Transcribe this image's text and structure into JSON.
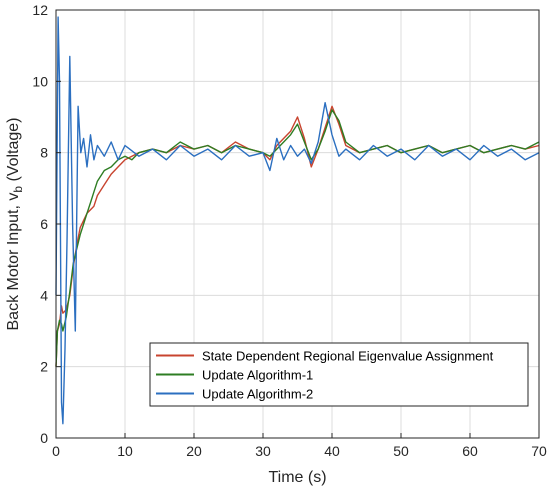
{
  "chart_data": {
    "type": "line",
    "title": "",
    "xlabel": "Time (s)",
    "ylabel_main": "Back Motor Input, v",
    "ylabel_sub": "b",
    "ylabel_unit": " (Voltage)",
    "xlim": [
      0,
      70
    ],
    "ylim": [
      0,
      12
    ],
    "xticks": [
      0,
      10,
      20,
      30,
      40,
      50,
      60,
      70
    ],
    "yticks": [
      0,
      2,
      4,
      6,
      8,
      10,
      12
    ],
    "grid": true,
    "legend_position": "bottom-right",
    "series": [
      {
        "name": "State Dependent Regional Eigenvalue Assignment",
        "color": "#c8442f",
        "x": [
          0,
          0.2,
          0.5,
          0.8,
          1.0,
          1.5,
          2,
          2.5,
          3,
          3.5,
          4,
          4.5,
          5,
          5.5,
          6,
          7,
          8,
          9,
          10,
          11,
          12,
          14,
          16,
          18,
          20,
          22,
          24,
          26,
          28,
          30,
          31,
          32,
          33,
          34,
          35,
          36,
          37,
          38,
          39,
          40,
          41,
          42,
          44,
          46,
          48,
          50,
          52,
          54,
          56,
          58,
          60,
          62,
          64,
          66,
          68,
          70
        ],
        "values": [
          2.0,
          3.0,
          3.2,
          3.7,
          3.5,
          3.6,
          4.0,
          4.8,
          5.4,
          5.9,
          6.1,
          6.3,
          6.4,
          6.5,
          6.8,
          7.1,
          7.4,
          7.6,
          7.8,
          7.9,
          8.0,
          8.1,
          8.0,
          8.2,
          8.1,
          8.2,
          8.0,
          8.3,
          8.1,
          8.0,
          7.8,
          8.2,
          8.4,
          8.6,
          9.0,
          8.4,
          7.6,
          8.1,
          8.7,
          9.3,
          8.8,
          8.2,
          8.0,
          8.1,
          8.2,
          8.0,
          8.1,
          8.2,
          8.0,
          8.1,
          8.2,
          8.0,
          8.1,
          8.2,
          8.1,
          8.2
        ]
      },
      {
        "name": "Update Algorithm-1",
        "color": "#2e7d23",
        "x": [
          0,
          0.2,
          0.5,
          0.8,
          1.0,
          1.5,
          2,
          2.5,
          3,
          3.5,
          4,
          4.5,
          5,
          5.5,
          6,
          7,
          8,
          9,
          10,
          11,
          12,
          14,
          16,
          18,
          20,
          22,
          24,
          26,
          28,
          30,
          31,
          32,
          33,
          34,
          35,
          36,
          37,
          38,
          39,
          40,
          41,
          42,
          44,
          46,
          48,
          50,
          52,
          54,
          56,
          58,
          60,
          62,
          64,
          66,
          68,
          70
        ],
        "values": [
          2.0,
          3.0,
          3.3,
          3.2,
          3.0,
          3.4,
          4.1,
          4.9,
          5.3,
          5.7,
          6.0,
          6.3,
          6.6,
          6.9,
          7.2,
          7.5,
          7.6,
          7.8,
          7.9,
          7.8,
          8.0,
          8.1,
          8.0,
          8.3,
          8.1,
          8.2,
          8.0,
          8.2,
          8.1,
          8.0,
          7.9,
          8.1,
          8.3,
          8.5,
          8.8,
          8.3,
          7.8,
          8.1,
          8.6,
          9.2,
          8.9,
          8.3,
          8.0,
          8.1,
          8.2,
          8.0,
          8.1,
          8.2,
          8.0,
          8.1,
          8.2,
          8.0,
          8.1,
          8.2,
          8.1,
          8.3
        ]
      },
      {
        "name": "Update Algorithm-2",
        "color": "#2b6fc0",
        "x": [
          0,
          0.3,
          0.5,
          0.8,
          1.0,
          1.3,
          1.6,
          2.0,
          2.4,
          2.8,
          3.2,
          3.6,
          4.0,
          4.5,
          5.0,
          5.5,
          6.0,
          7.0,
          8.0,
          9.0,
          10,
          12,
          14,
          16,
          18,
          20,
          22,
          24,
          26,
          28,
          30,
          31,
          32,
          33,
          34,
          35,
          36,
          37,
          38,
          39,
          40,
          41,
          42,
          44,
          46,
          48,
          50,
          52,
          54,
          56,
          58,
          60,
          62,
          64,
          66,
          68,
          70
        ],
        "values": [
          4.0,
          11.8,
          10.0,
          1.0,
          0.4,
          2.5,
          5.5,
          10.7,
          6.0,
          3.0,
          9.3,
          8.0,
          8.4,
          7.6,
          8.5,
          7.8,
          8.2,
          7.9,
          8.3,
          7.8,
          8.2,
          7.9,
          8.1,
          7.8,
          8.2,
          7.9,
          8.1,
          7.8,
          8.2,
          7.9,
          8.0,
          7.5,
          8.4,
          7.8,
          8.2,
          7.9,
          8.1,
          7.7,
          8.3,
          9.4,
          8.5,
          7.9,
          8.1,
          7.8,
          8.2,
          7.9,
          8.1,
          7.8,
          8.2,
          7.9,
          8.1,
          7.8,
          8.2,
          7.9,
          8.1,
          7.8,
          8.0
        ]
      }
    ]
  }
}
